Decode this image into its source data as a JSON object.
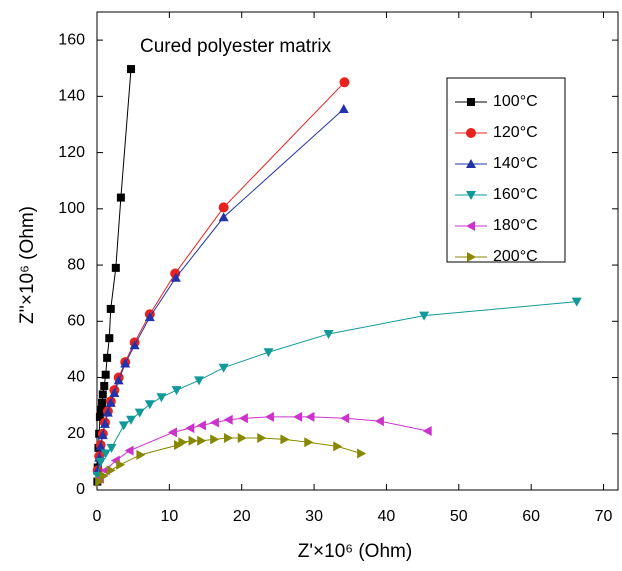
{
  "chart_data": {
    "type": "line",
    "title": "Cured polyester matrix",
    "x_label": "Z'×10⁶ (Ohm)",
    "y_label": "Z''×10⁶ (Ohm)",
    "xlim": [
      0,
      72
    ],
    "ylim": [
      0,
      170
    ],
    "xticks": [
      0,
      10,
      20,
      30,
      40,
      50,
      60,
      70
    ],
    "yticks": [
      0,
      20,
      40,
      60,
      80,
      100,
      120,
      140,
      160
    ],
    "legend": "upper right",
    "series": [
      {
        "name": "100°C",
        "color": "#000000",
        "marker": "square",
        "x": [
          4.7,
          3.3,
          2.6,
          1.9,
          1.7,
          1.4,
          1.2,
          1.0,
          0.8,
          0.7,
          0.55,
          0.4,
          0.3,
          0.2,
          0.1,
          0.05
        ],
        "values": [
          149.7,
          104,
          79,
          64.4,
          54,
          47,
          41,
          37,
          34,
          31,
          28.5,
          26,
          20,
          15,
          8,
          3
        ]
      },
      {
        "name": "120°C",
        "color": "#e8221f",
        "marker": "circle",
        "x": [
          34.2,
          17.5,
          10.8,
          7.3,
          5.2,
          3.9,
          3.0,
          2.4,
          1.9,
          1.5,
          1.1,
          0.8,
          0.5,
          0.3,
          0.1
        ],
        "values": [
          145,
          100.5,
          77,
          62.5,
          52.5,
          45.5,
          40,
          35.5,
          31.5,
          28,
          24,
          20,
          16,
          12,
          7
        ]
      },
      {
        "name": "140°C",
        "color": "#2233aa",
        "marker": "triangle-up",
        "x": [
          34.1,
          17.5,
          10.9,
          7.3,
          5.2,
          3.9,
          3.0,
          2.4,
          1.9,
          1.5,
          1.1,
          0.8,
          0.5,
          0.3,
          0.1
        ],
        "values": [
          135.5,
          97,
          75.5,
          61.5,
          51.5,
          45,
          39,
          34.5,
          31,
          27.5,
          23.5,
          19.5,
          15.5,
          11.5,
          7
        ]
      },
      {
        "name": "160°C",
        "color": "#119999",
        "marker": "triangle-down",
        "x": [
          66.3,
          45.2,
          32.0,
          23.7,
          17.5,
          14.1,
          11.0,
          8.9,
          7.3,
          5.9,
          4.7,
          3.7,
          2.0,
          1.2,
          0.5,
          0.1
        ],
        "values": [
          67,
          62,
          55.5,
          49,
          43.5,
          39,
          35.5,
          33,
          30.5,
          27.5,
          25,
          23,
          15,
          13,
          10,
          5
        ]
      },
      {
        "name": "180°C",
        "color": "#cc33cc",
        "marker": "triangle-left",
        "x": [
          45.7,
          39.1,
          34.3,
          29.5,
          27.8,
          23.9,
          20.3,
          18.2,
          16.3,
          14.5,
          12.9,
          10.5,
          4.5,
          2.6,
          1.2,
          0.4
        ],
        "values": [
          21,
          24.5,
          25.5,
          26,
          26,
          26,
          25.5,
          25,
          24,
          23,
          22,
          20.5,
          14,
          10.5,
          7,
          4
        ]
      },
      {
        "name": "200°C",
        "color": "#888800",
        "marker": "triangle-right",
        "x": [
          36.5,
          33.2,
          29.2,
          25.9,
          22.7,
          20.0,
          18.1,
          16.2,
          14.4,
          13.2,
          11.8,
          11.2,
          6.0,
          3.2,
          1.9,
          0.9,
          0.3
        ],
        "values": [
          13,
          15.5,
          17,
          18,
          18.5,
          18.5,
          18.5,
          18,
          17.5,
          17.5,
          17,
          16,
          12.5,
          9,
          7,
          5,
          3
        ]
      }
    ]
  }
}
